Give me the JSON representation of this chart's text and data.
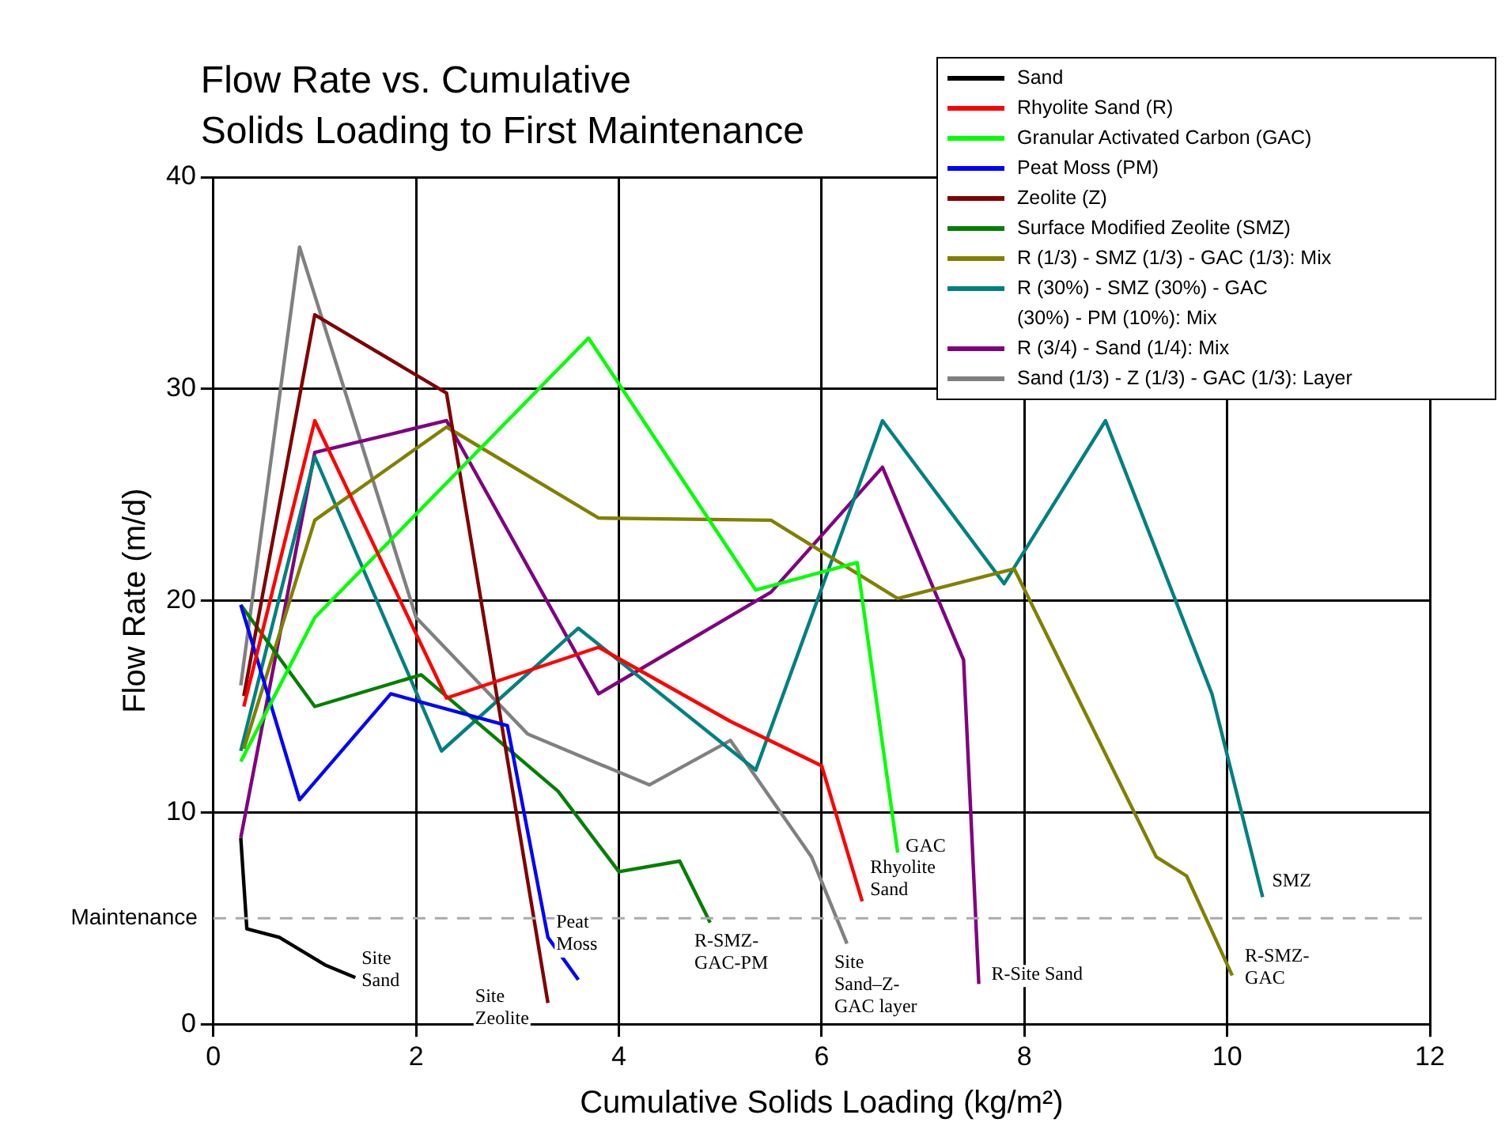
{
  "chart_data": {
    "type": "line",
    "title": "Flow Rate vs. Cumulative\nSolids Loading to First Maintenance",
    "xlabel": "Cumulative Solids Loading (kg/m²)",
    "ylabel": "Flow Rate (m/d)",
    "xlim": [
      0,
      12
    ],
    "xticks": [
      0,
      2,
      4,
      6,
      8,
      10,
      12
    ],
    "ylim": [
      0,
      40
    ],
    "yticks": [
      0,
      10,
      20,
      30,
      40
    ],
    "grid": true,
    "legend": "top right",
    "marker": "none",
    "line_style": "solid",
    "ref_lines": [
      {
        "axis": "y",
        "value": 5,
        "label": "Maintenance",
        "color": "#aaaaaa",
        "line_style": "dashed"
      }
    ],
    "series": [
      {
        "name": "Sand",
        "color": "#000000",
        "x": [
          0.27,
          0.33,
          0.65,
          1.1,
          1.4
        ],
        "values": [
          8.8,
          4.5,
          4.1,
          2.8,
          2.2
        ]
      },
      {
        "name": "Rhyolite Sand (R)",
        "color": "#ff0000",
        "x": [
          0.3,
          1.0,
          2.3,
          3.8,
          5.1,
          6.0,
          6.4
        ],
        "values": [
          15,
          28.5,
          15.4,
          17.8,
          14.3,
          12.2,
          5.8
        ]
      },
      {
        "name": "Granular Activated Carbon (GAC)",
        "color": "#00ff00",
        "x": [
          0.27,
          1.0,
          3.7,
          5.35,
          6.35,
          6.75
        ],
        "values": [
          12.4,
          19.2,
          32.4,
          20.5,
          21.8,
          8.1
        ]
      },
      {
        "name": "Peat Moss (PM)",
        "color": "#0000ff",
        "x": [
          0.27,
          0.85,
          1.75,
          2.9,
          3.3,
          3.6
        ],
        "values": [
          19.8,
          10.6,
          15.6,
          14.1,
          4.1,
          2.1
        ]
      },
      {
        "name": "Zeolite (Z)",
        "color": "#800000",
        "x": [
          0.3,
          1.0,
          2.3,
          3.3
        ],
        "values": [
          15.5,
          33.5,
          29.8,
          1.0
        ]
      },
      {
        "name": "Surface Modified Zeolite (SMZ)",
        "color": "#008000",
        "x": [
          0.27,
          1.0,
          2.05,
          3.4,
          4.0,
          4.6,
          4.9
        ],
        "values": [
          19.8,
          15.0,
          16.5,
          11,
          7.2,
          7.7,
          4.8
        ]
      },
      {
        "name": "R (1/3) - SMZ (1/3) - GAC (1/3): Mix",
        "color": "#808000",
        "x": [
          0.3,
          1.0,
          2.3,
          3.8,
          5.5,
          6.75,
          7.9,
          9.3,
          9.6,
          10.05
        ],
        "values": [
          13,
          23.8,
          28.2,
          23.9,
          23.8,
          20.1,
          21.5,
          7.9,
          7.0,
          2.3
        ]
      },
      {
        "name": "R (30%) - SMZ (30%) - GAC (30%) - PM (10%): Mix",
        "color": "#008080",
        "x": [
          0.27,
          1.0,
          2.25,
          3.6,
          5.35,
          6.6,
          7.8,
          8.8,
          9.85,
          10.35
        ],
        "values": [
          12.9,
          26.8,
          12.9,
          18.7,
          12,
          28.5,
          20.8,
          28.5,
          15.6,
          6
        ]
      },
      {
        "name": "R (3/4) - Sand (1/4): Mix",
        "color": "#800080",
        "x": [
          0.27,
          1.0,
          2.3,
          3.8,
          5.5,
          6.6,
          7.4,
          7.55
        ],
        "values": [
          8.8,
          27.0,
          28.5,
          15.6,
          20.4,
          26.3,
          17.2,
          1.9
        ]
      },
      {
        "name": "Sand (1/3) - Z (1/3) - GAC (1/3): Layer",
        "color": "#808080",
        "x": [
          0.27,
          0.85,
          2.0,
          3.1,
          4.3,
          5.1,
          5.9,
          6.25
        ],
        "values": [
          16,
          36.7,
          19.2,
          13.7,
          11.3,
          13.4,
          7.9,
          3.8
        ]
      }
    ],
    "annotations": [
      {
        "text": "Site\nSand",
        "x": 1.4,
        "y": 2.2
      },
      {
        "text": "Site\nZeolite",
        "x": 3.3,
        "y": 1.0
      },
      {
        "text": "Peat\nMoss",
        "x": 3.6,
        "y": 2.1
      },
      {
        "text": "R-SMZ-\nGAC-PM",
        "x": 4.9,
        "y": 4.8
      },
      {
        "text": "Site\nSand–Z-\nGAC layer",
        "x": 6.25,
        "y": 3.8
      },
      {
        "text": "GAC",
        "x": 6.75,
        "y": 8.1
      },
      {
        "text": "Rhyolite\nSand",
        "x": 6.4,
        "y": 5.8
      },
      {
        "text": "R-Site Sand",
        "x": 7.55,
        "y": 1.9
      },
      {
        "text": "SMZ",
        "x": 10.35,
        "y": 6
      },
      {
        "text": "R-SMZ-\nGAC",
        "x": 10.05,
        "y": 2.3
      }
    ]
  }
}
